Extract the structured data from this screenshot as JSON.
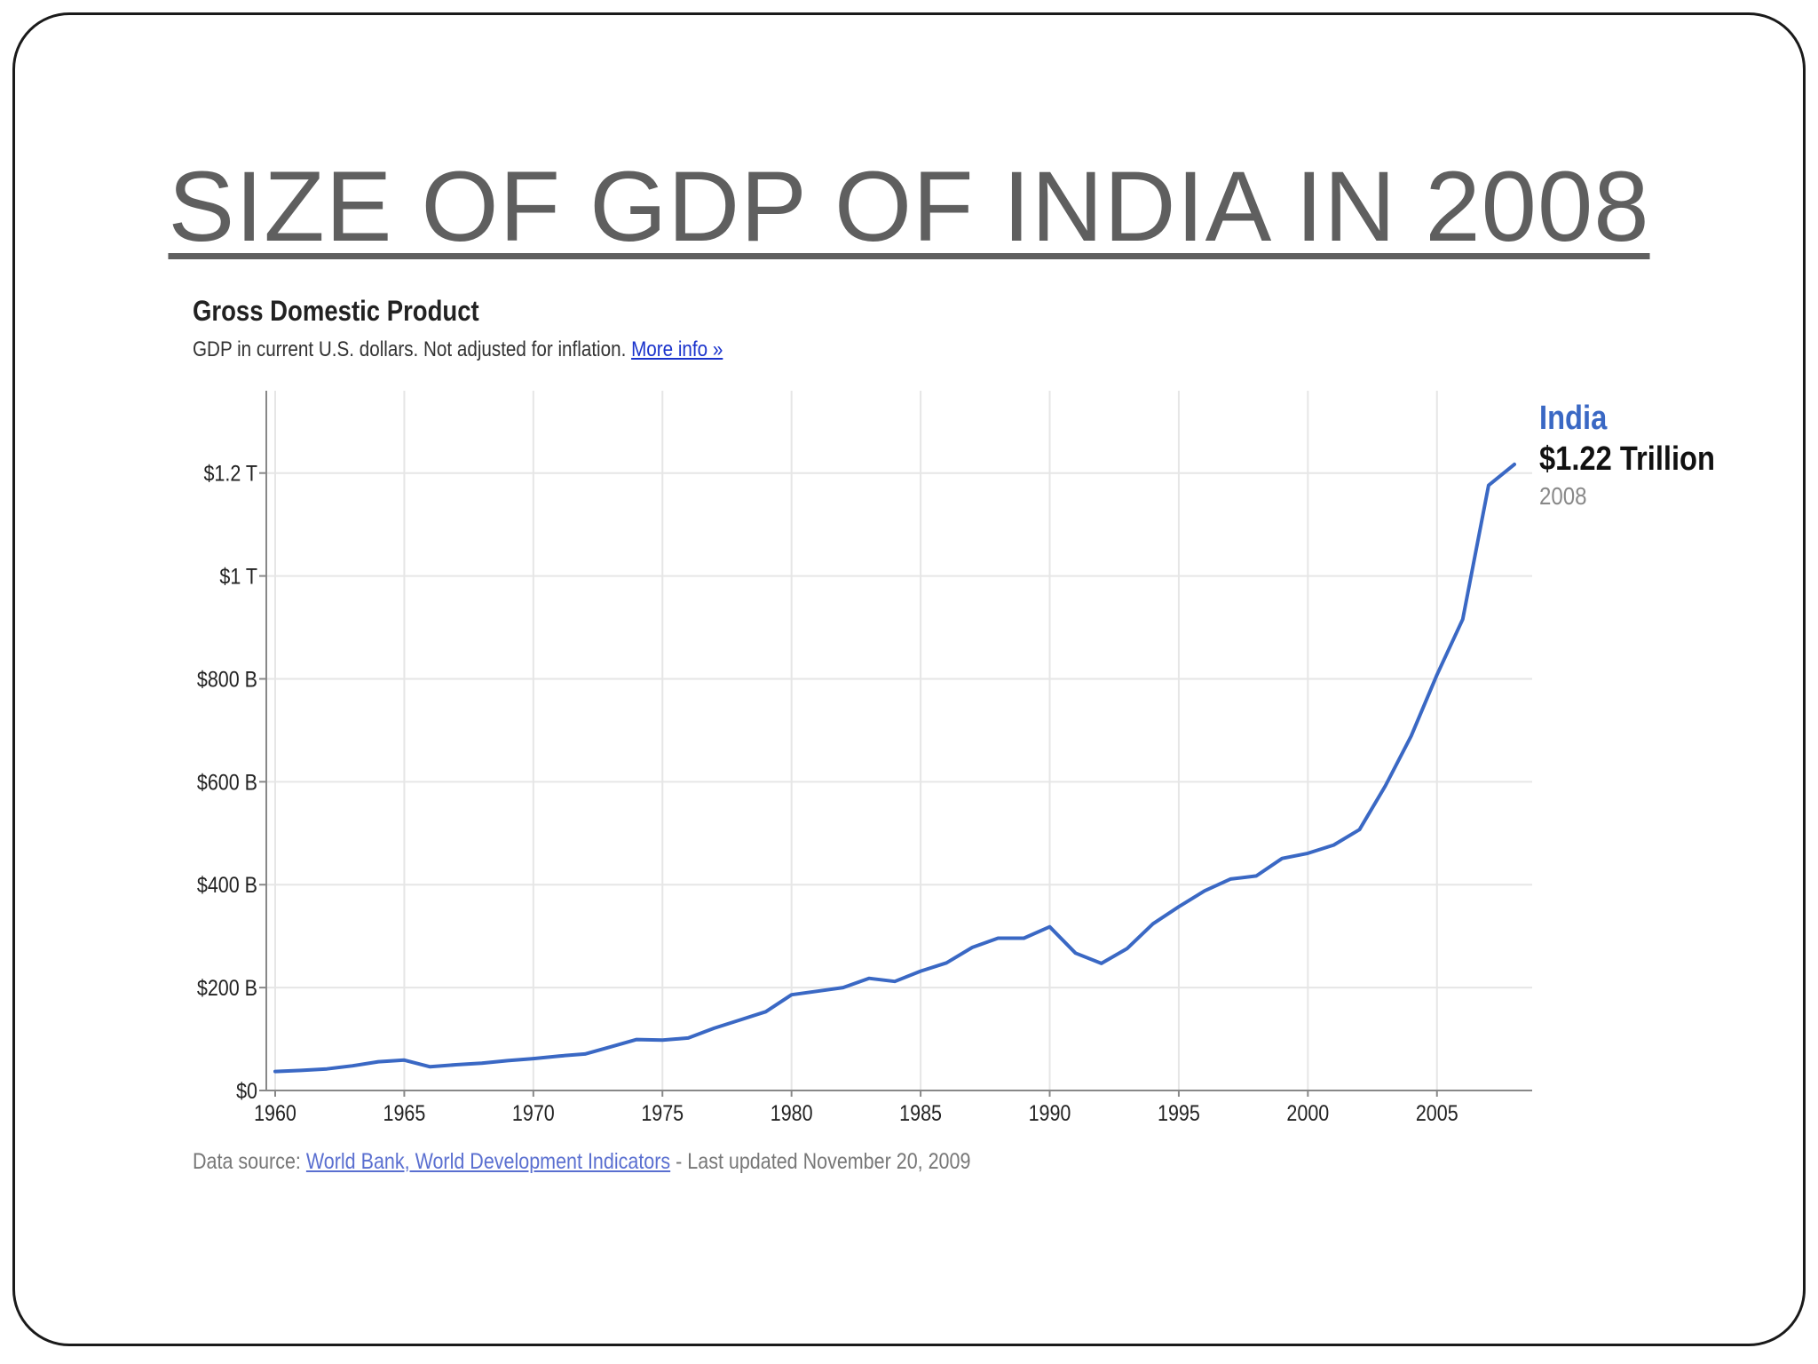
{
  "slide": {
    "title": "SIZE OF GDP OF INDIA IN 2008"
  },
  "chart_header": {
    "heading": "Gross Domestic Product",
    "subheading": "GDP in current U.S. dollars. Not adjusted for inflation.",
    "more_info": "More info »"
  },
  "footer": {
    "source_prefix": "Data source:",
    "source_link": "World Bank, World Development Indicators",
    "updated": "- Last updated November 20, 2009"
  },
  "legend": {
    "series": "India",
    "value": "$1.22 Trillion",
    "year": "2008"
  },
  "colors": {
    "line": "#3a68c4",
    "grid": "#e6e6e6",
    "axis": "#888888"
  },
  "chart_data": {
    "type": "line",
    "title": "Gross Domestic Product",
    "subtitle": "GDP in current U.S. dollars. Not adjusted for inflation.",
    "xlabel": "",
    "ylabel": "",
    "xlim": [
      1960,
      2008
    ],
    "ylim": [
      0,
      1360
    ],
    "grid": true,
    "legend": "right",
    "x_ticks": [
      1960,
      1965,
      1970,
      1975,
      1980,
      1985,
      1990,
      1995,
      2000,
      2005
    ],
    "x_tick_labels": [
      "1960",
      "1965",
      "1970",
      "1975",
      "1980",
      "1985",
      "1990",
      "1995",
      "2000",
      "2005"
    ],
    "y_ticks": [
      0,
      200,
      400,
      600,
      800,
      1000,
      1200
    ],
    "y_tick_labels": [
      "$0",
      "$200 B",
      "$400 B",
      "$600 B",
      "$800 B",
      "$1 T",
      "$1.2 T"
    ],
    "y_unit": "billions of current US dollars",
    "series": [
      {
        "name": "India",
        "x": [
          1960,
          1961,
          1962,
          1963,
          1964,
          1965,
          1966,
          1967,
          1968,
          1969,
          1970,
          1971,
          1972,
          1973,
          1974,
          1975,
          1976,
          1977,
          1978,
          1979,
          1980,
          1981,
          1982,
          1983,
          1984,
          1985,
          1986,
          1987,
          1988,
          1989,
          1990,
          1991,
          1992,
          1993,
          1994,
          1995,
          1996,
          1997,
          1998,
          1999,
          2000,
          2001,
          2002,
          2003,
          2004,
          2005,
          2006,
          2007,
          2008
        ],
        "values": [
          37,
          39,
          42,
          48,
          56,
          59,
          46,
          50,
          53,
          58,
          62,
          67,
          71,
          85,
          99,
          98,
          102,
          121,
          137,
          153,
          186,
          193,
          200,
          218,
          212,
          232,
          248,
          278,
          296,
          296,
          318,
          267,
          247,
          276,
          324,
          357,
          388,
          411,
          417,
          451,
          461,
          477,
          507,
          592,
          689,
          808,
          916,
          1176,
          1217
        ]
      }
    ]
  }
}
